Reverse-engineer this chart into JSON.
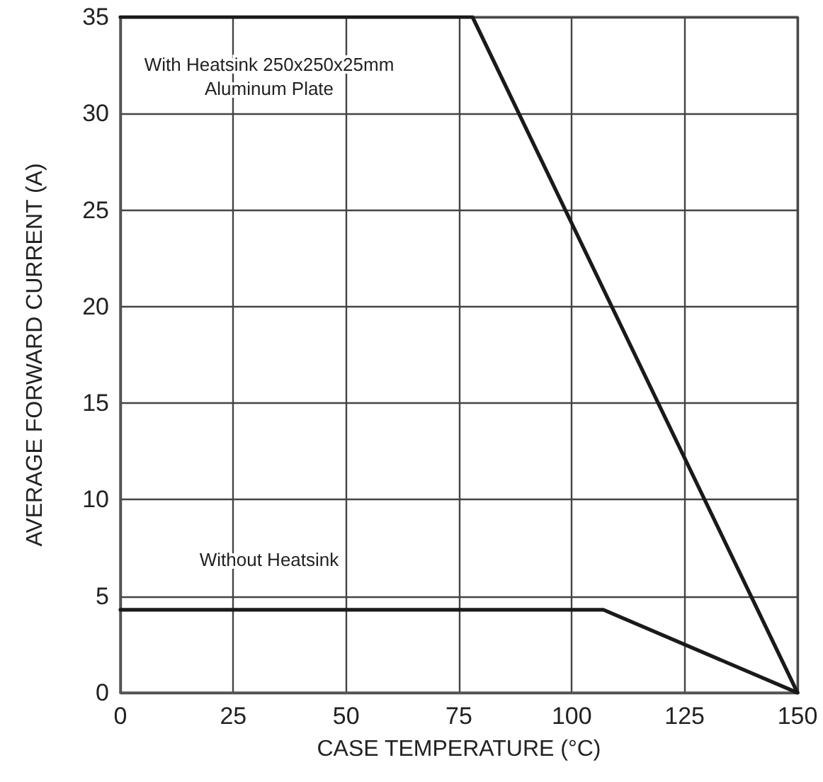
{
  "chart_data": {
    "type": "line",
    "xlabel": "CASE TEMPERATURE (°C)",
    "ylabel": "AVERAGE FORWARD CURRENT (A)",
    "xlim": [
      0,
      150
    ],
    "xticks": [
      0,
      25,
      50,
      75,
      100,
      125,
      150
    ],
    "ylim": [
      0,
      35
    ],
    "yticks": [
      0,
      5,
      10,
      15,
      20,
      25,
      30,
      35
    ],
    "series": [
      {
        "color": "#1a1a1a",
        "x": [
          0,
          78,
          150
        ],
        "values": [
          35,
          35,
          0
        ]
      },
      {
        "color": "#1a1a1a",
        "x": [
          0,
          107,
          150
        ],
        "values": [
          4.3,
          4.3,
          0
        ]
      }
    ],
    "annotations": [
      "With Heatsink 250x250x25mm\nAluminum Plate",
      "Without Heatsink"
    ],
    "grid": true,
    "marker": "none",
    "line_style": "solid"
  }
}
